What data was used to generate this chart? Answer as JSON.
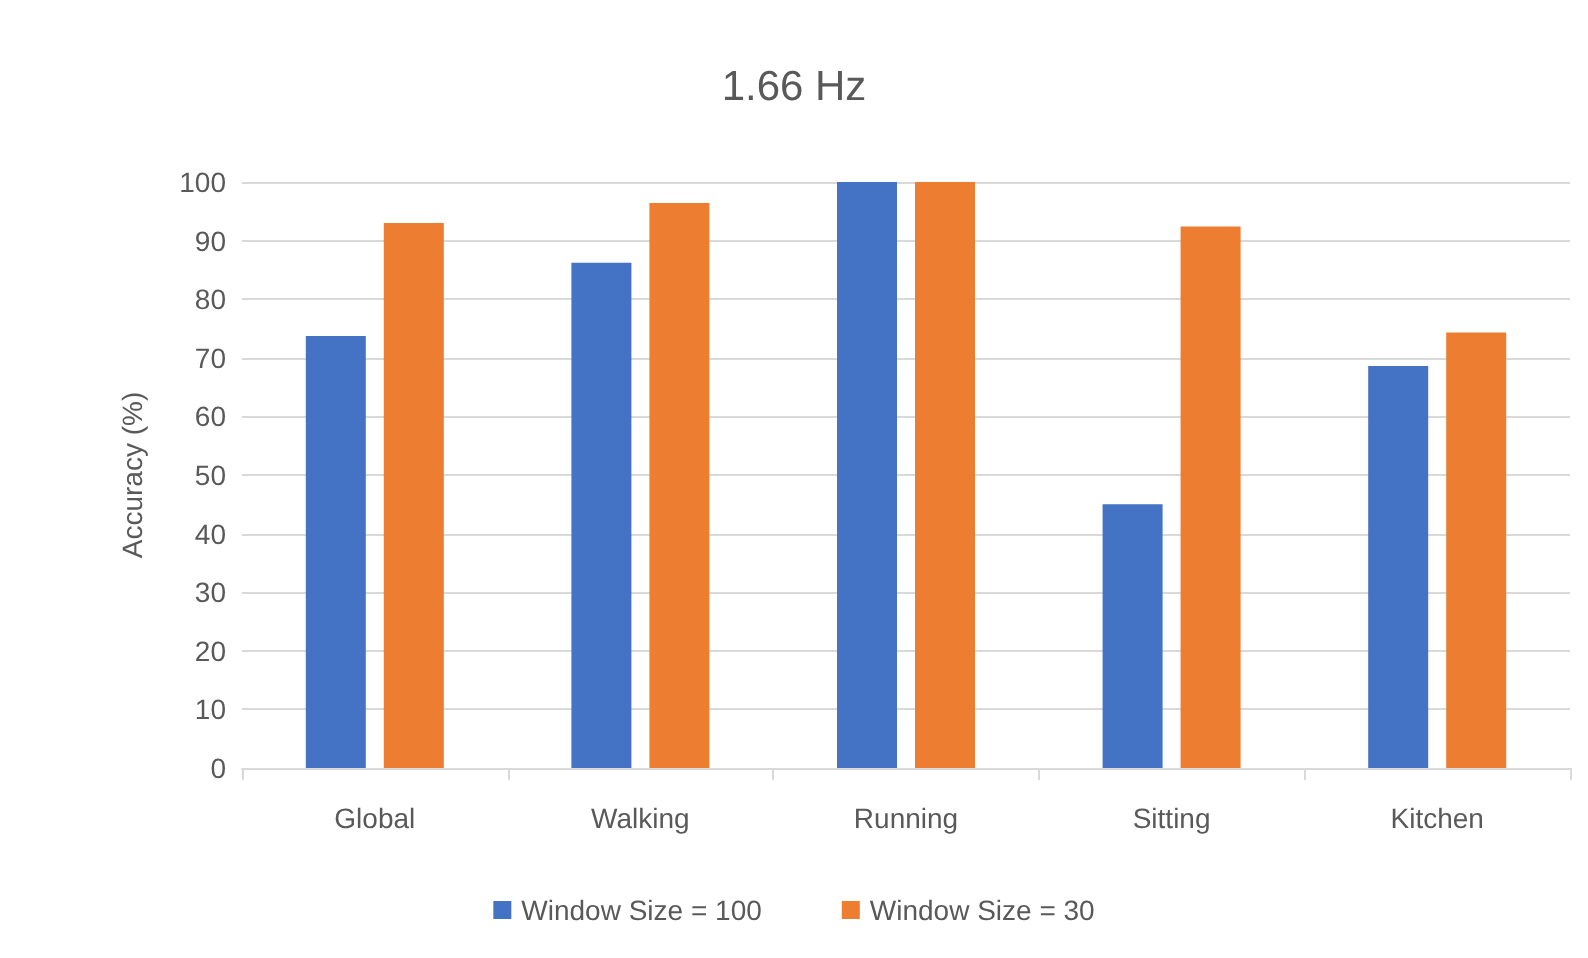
{
  "chart_data": {
    "type": "bar",
    "title": "1.66 Hz",
    "ylabel": "Accuracy (%)",
    "categories": [
      "Global",
      "Walking",
      "Running",
      "Sitting",
      "Kitchen"
    ],
    "series": [
      {
        "name": "Window Size = 100",
        "color": "#4472c4",
        "values": [
          73.7,
          86.2,
          100,
          45,
          68.6
        ]
      },
      {
        "name": "Window Size = 30",
        "color": "#ed7d31",
        "values": [
          93,
          96.4,
          100,
          92.4,
          74.3
        ]
      }
    ],
    "ylim": [
      0,
      100
    ],
    "yticks": [
      0,
      10,
      20,
      30,
      40,
      50,
      60,
      70,
      80,
      90,
      100
    ],
    "grid": "y",
    "legend": "bottom"
  }
}
